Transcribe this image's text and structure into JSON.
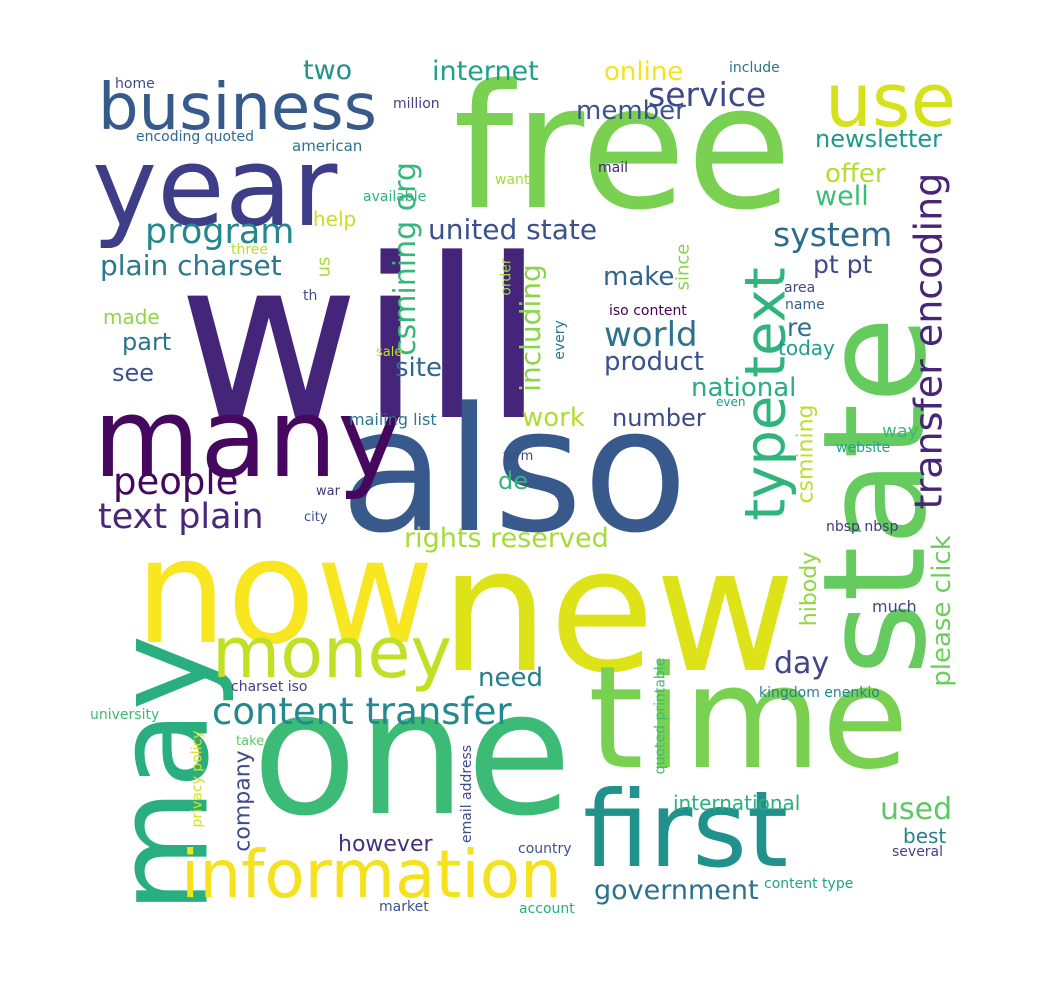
{
  "words": [
    {
      "text": "will",
      "color": "#45257a"
    },
    {
      "text": "also",
      "color": "#38598c"
    },
    {
      "text": "free",
      "color": "#7ad151"
    },
    {
      "text": "new",
      "color": "#dde318"
    },
    {
      "text": "one",
      "color": "#3bbb75"
    },
    {
      "text": "now",
      "color": "#f8e621"
    },
    {
      "text": "time",
      "color": "#7ad151"
    },
    {
      "text": "state",
      "color": "#65cb5e"
    },
    {
      "text": "year",
      "color": "#3e3d88"
    },
    {
      "text": "many",
      "color": "#45085e"
    },
    {
      "text": "may",
      "color": "#29af7f"
    },
    {
      "text": "first",
      "color": "#21918c"
    },
    {
      "text": "business",
      "color": "#375a8c"
    },
    {
      "text": "use",
      "color": "#d5e21a"
    },
    {
      "text": "information",
      "color": "#f5e11d"
    },
    {
      "text": "money",
      "color": "#c0df25"
    },
    {
      "text": "type text",
      "color": "#2fb47c"
    },
    {
      "text": "transfer encoding",
      "color": "#482576"
    },
    {
      "text": "content transfer",
      "color": "#23898e"
    },
    {
      "text": "people",
      "color": "#44095f"
    },
    {
      "text": "text plain",
      "color": "#482878"
    },
    {
      "text": "program",
      "color": "#24878e"
    },
    {
      "text": "system",
      "color": "#2f6b8e"
    },
    {
      "text": "service",
      "color": "#3e4989"
    },
    {
      "text": "united state",
      "color": "#3b518b"
    },
    {
      "text": "plain charset",
      "color": "#2a788e"
    },
    {
      "text": "world",
      "color": "#2c728e"
    },
    {
      "text": "csmining org",
      "color": "#35b779"
    },
    {
      "text": "including",
      "color": "#8bd646"
    },
    {
      "text": "rights reserved",
      "color": "#a5db36"
    },
    {
      "text": "please click",
      "color": "#6ccd5a"
    },
    {
      "text": "government",
      "color": "#2c728e"
    },
    {
      "text": "internet",
      "color": "#1fa088"
    },
    {
      "text": "two",
      "color": "#21918c"
    },
    {
      "text": "online",
      "color": "#f1e51d"
    },
    {
      "text": "member",
      "color": "#3b528b"
    },
    {
      "text": "newsletter",
      "color": "#1f988b"
    },
    {
      "text": "offer",
      "color": "#b5de2b"
    },
    {
      "text": "well",
      "color": "#3dbc74"
    },
    {
      "text": "pt pt",
      "color": "#3f4889"
    },
    {
      "text": "make",
      "color": "#33638d"
    },
    {
      "text": "re",
      "color": "#2e6e8e"
    },
    {
      "text": "today",
      "color": "#1f9e89"
    },
    {
      "text": "product",
      "color": "#3b528b"
    },
    {
      "text": "national",
      "color": "#28ae80"
    },
    {
      "text": "site",
      "color": "#31688e"
    },
    {
      "text": "work",
      "color": "#b0dd2f"
    },
    {
      "text": "number",
      "color": "#3e4a89"
    },
    {
      "text": "de",
      "color": "#32b67a"
    },
    {
      "text": "csmining",
      "color": "#bddf26"
    },
    {
      "text": "hibody",
      "color": "#90d743"
    },
    {
      "text": "day",
      "color": "#414487"
    },
    {
      "text": "used",
      "color": "#5ec962"
    },
    {
      "text": "best",
      "color": "#27808e"
    },
    {
      "text": "need",
      "color": "#277f8e"
    },
    {
      "text": "however",
      "color": "#46307e"
    },
    {
      "text": "company",
      "color": "#3e4c8a"
    },
    {
      "text": "international",
      "color": "#2ab07f"
    },
    {
      "text": "see",
      "color": "#3b518b"
    },
    {
      "text": "part",
      "color": "#2c728e"
    },
    {
      "text": "made",
      "color": "#8fd744"
    },
    {
      "text": "help",
      "color": "#c8e020"
    },
    {
      "text": "us",
      "color": "#a8db34"
    },
    {
      "text": "since",
      "color": "#86d549"
    },
    {
      "text": "order",
      "color": "#9dd93b"
    },
    {
      "text": "way",
      "color": "#3aba76"
    },
    {
      "text": "much",
      "color": "#3f4788"
    },
    {
      "text": "home",
      "color": "#3e4a89"
    },
    {
      "text": "encoding quoted",
      "color": "#31688e"
    },
    {
      "text": "million",
      "color": "#433e85"
    },
    {
      "text": "american",
      "color": "#2d718e"
    },
    {
      "text": "available",
      "color": "#2fb47c"
    },
    {
      "text": "want",
      "color": "#a8db34"
    },
    {
      "text": "mail",
      "color": "#482475"
    },
    {
      "text": "include",
      "color": "#2b758e"
    },
    {
      "text": "three",
      "color": "#bddf26"
    },
    {
      "text": "th",
      "color": "#3e4c8a"
    },
    {
      "text": "area",
      "color": "#3f4889"
    },
    {
      "text": "name",
      "color": "#355f8d"
    },
    {
      "text": "iso content",
      "color": "#440154"
    },
    {
      "text": "sale",
      "color": "#c2df23"
    },
    {
      "text": "every",
      "color": "#2a788e"
    },
    {
      "text": "even",
      "color": "#1f9a8a"
    },
    {
      "text": "mailing list",
      "color": "#2a788e"
    },
    {
      "text": "form",
      "color": "#3e4a89"
    },
    {
      "text": "website",
      "color": "#20a386"
    },
    {
      "text": "war",
      "color": "#46327e"
    },
    {
      "text": "city",
      "color": "#3b528b"
    },
    {
      "text": "nbsp nbsp",
      "color": "#453781"
    },
    {
      "text": "charset iso",
      "color": "#433e85"
    },
    {
      "text": "kingdom enenkio",
      "color": "#26828e"
    },
    {
      "text": "university",
      "color": "#3bbb75"
    },
    {
      "text": "privacy policy",
      "color": "#d8e219"
    },
    {
      "text": "take",
      "color": "#5ec962"
    },
    {
      "text": "email address",
      "color": "#3e4a89"
    },
    {
      "text": "quoted printable",
      "color": "#3dbc74"
    },
    {
      "text": "country",
      "color": "#3b528b"
    },
    {
      "text": "several",
      "color": "#414487"
    },
    {
      "text": "content type",
      "color": "#20a386"
    },
    {
      "text": "market",
      "color": "#3b528b"
    },
    {
      "text": "account",
      "color": "#27ad81"
    }
  ]
}
